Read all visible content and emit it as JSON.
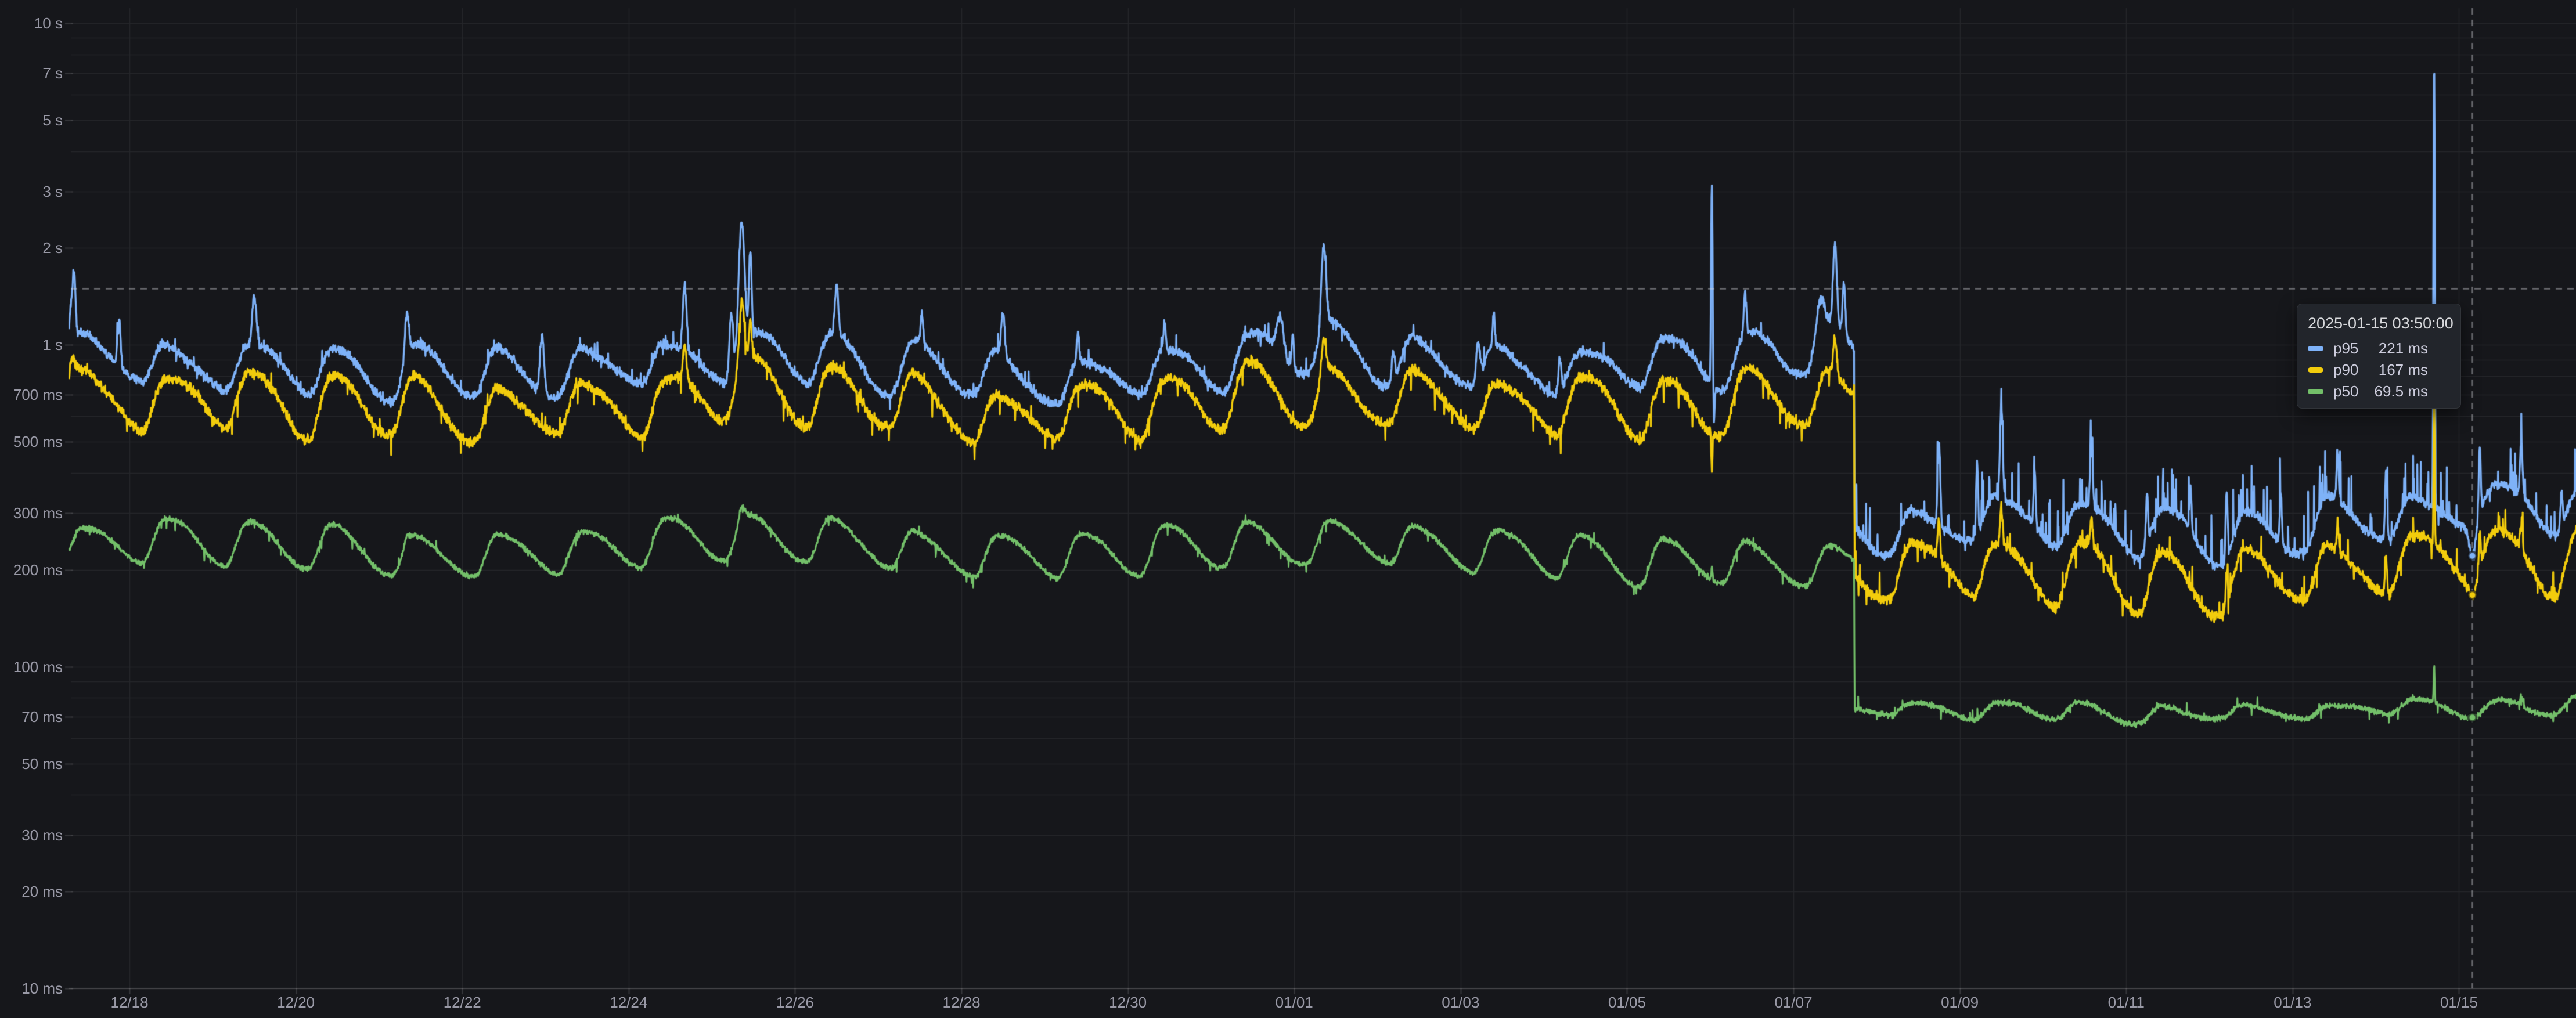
{
  "page": {
    "background": "#16171B",
    "kind": "time-series latency percentile panel"
  },
  "tooltip": {
    "title": "2025-01-15 03:50:00",
    "rows": [
      {
        "series": "p95",
        "value": "221 ms",
        "value_ms": 221,
        "color": "#7EB2F8"
      },
      {
        "series": "p90",
        "value": "167 ms",
        "value_ms": 167,
        "color": "#F2CC0C"
      },
      {
        "series": "p50",
        "value": "69.5 ms",
        "value_ms": 69.5,
        "color": "#73BF69"
      }
    ]
  },
  "crosshair": {
    "time": "2025-01-15 03:50:00",
    "time_h": 692.25,
    "y_value_ms": 1500
  },
  "chart_data": {
    "type": "line",
    "x_type": "time",
    "y_scale": "log10",
    "y_unit": "milliseconds",
    "ylim_ms": [
      10,
      10000
    ],
    "x_range": [
      "2024-12-17 07:35",
      "2025-01-16 09:45"
    ],
    "grid": true,
    "legend_position": "none",
    "y_ticks": [
      {
        "label": "10 s",
        "ms": 10000
      },
      {
        "label": "7 s",
        "ms": 7000
      },
      {
        "label": "5 s",
        "ms": 5000
      },
      {
        "label": "3 s",
        "ms": 3000
      },
      {
        "label": "2 s",
        "ms": 2000
      },
      {
        "label": "1 s",
        "ms": 1000
      },
      {
        "label": "700 ms",
        "ms": 700
      },
      {
        "label": "500 ms",
        "ms": 500
      },
      {
        "label": "300 ms",
        "ms": 300
      },
      {
        "label": "200 ms",
        "ms": 200
      },
      {
        "label": "100 ms",
        "ms": 100
      },
      {
        "label": "70 ms",
        "ms": 70
      },
      {
        "label": "50 ms",
        "ms": 50
      },
      {
        "label": "30 ms",
        "ms": 30
      },
      {
        "label": "20 ms",
        "ms": 20
      },
      {
        "label": "10 ms",
        "ms": 10
      }
    ],
    "y_grid_ms": [
      10000,
      9000,
      8000,
      7000,
      6000,
      5000,
      4000,
      3000,
      2000,
      1000,
      900,
      800,
      700,
      600,
      500,
      400,
      300,
      200,
      100,
      90,
      80,
      70,
      60,
      50,
      40,
      30,
      20,
      10
    ],
    "x_ticks": [
      {
        "label": "12/18",
        "t_h": 16.42
      },
      {
        "label": "12/20",
        "t_h": 64.42
      },
      {
        "label": "12/22",
        "t_h": 112.42
      },
      {
        "label": "12/24",
        "t_h": 160.42
      },
      {
        "label": "12/26",
        "t_h": 208.42
      },
      {
        "label": "12/28",
        "t_h": 256.42
      },
      {
        "label": "12/30",
        "t_h": 304.42
      },
      {
        "label": "01/01",
        "t_h": 352.42
      },
      {
        "label": "01/03",
        "t_h": 400.42
      },
      {
        "label": "01/05",
        "t_h": 448.42
      },
      {
        "label": "01/07",
        "t_h": 496.42
      },
      {
        "label": "01/09",
        "t_h": 544.42
      },
      {
        "label": "01/11",
        "t_h": 592.42
      },
      {
        "label": "01/13",
        "t_h": 640.42
      },
      {
        "label": "01/15",
        "t_h": 688.42
      }
    ],
    "daily_pattern": {
      "peak_hour": 10.2,
      "trough_hour": 3.6,
      "start_hour_of_day": 7.58
    },
    "weekly": {
      "amplitude": 0.045,
      "peak_day": 1.2,
      "period_days": 7
    },
    "level_shift": {
      "t_h": 513.92,
      "time": "2025-01-07 ~17:30"
    },
    "series": [
      {
        "name": "p95",
        "color": "#7EB2F8",
        "line_width": 3.2,
        "envelope_ms": [
          [
            -1,
            870
          ],
          [
            16,
            860
          ],
          [
            60,
            855
          ],
          [
            100,
            845
          ],
          [
            150,
            855
          ],
          [
            190,
            920
          ],
          [
            215,
            865
          ],
          [
            260,
            845
          ],
          [
            310,
            835
          ],
          [
            358,
            920
          ],
          [
            405,
            865
          ],
          [
            455,
            900
          ],
          [
            500,
            965
          ],
          [
            513.9,
            930
          ],
          [
            514.05,
            266
          ],
          [
            530,
            261
          ],
          [
            556,
            279
          ],
          [
            580,
            284
          ],
          [
            602,
            263
          ],
          [
            628,
            275
          ],
          [
            652,
            286
          ],
          [
            680,
            292
          ],
          [
            700,
            296
          ],
          [
            723,
            300
          ]
        ],
        "daily_amp_pre": 0.17,
        "daily_amp_post": 0.17,
        "spikes": [
          [
            -0.3,
            1.0,
            0.42
          ],
          [
            0.5,
            0.5,
            0.35
          ],
          [
            13.4,
            0.6,
            0.42
          ],
          [
            52.4,
            0.8,
            0.42
          ],
          [
            96.4,
            0.8,
            0.38
          ],
          [
            135.4,
            0.8,
            0.5
          ],
          [
            176.6,
            0.7,
            0.6
          ],
          [
            190.0,
            0.7,
            0.5
          ],
          [
            193.0,
            1.0,
            1.35
          ],
          [
            195.5,
            0.5,
            0.8
          ],
          [
            220.4,
            0.7,
            0.42
          ],
          [
            245,
            0.5,
            0.25
          ],
          [
            268.4,
            0.7,
            0.36
          ],
          [
            290,
            0.5,
            0.22
          ],
          [
            315,
            0.5,
            0.22
          ],
          [
            348.4,
            1.3,
            0.3
          ],
          [
            352,
            0.4,
            0.3
          ],
          [
            360.9,
            0.9,
            0.82
          ],
          [
            381,
            0.6,
            0.25
          ],
          [
            405.4,
            0.7,
            0.32
          ],
          [
            410,
            0.4,
            0.25
          ],
          [
            429,
            0.6,
            0.28
          ],
          [
            472.9,
            0.26,
            3.2
          ],
          [
            473.5,
            0.3,
            -0.22
          ],
          [
            482.5,
            0.5,
            0.35
          ],
          [
            504.0,
            1.6,
            0.28
          ],
          [
            508.4,
            0.7,
            0.8
          ],
          [
            511.0,
            0.5,
            0.45
          ],
          [
            538.4,
            0.5,
            0.85
          ],
          [
            549.4,
            0.4,
            0.65
          ],
          [
            556.4,
            0.5,
            0.95
          ],
          [
            566.0,
            0.4,
            0.5
          ],
          [
            582.4,
            0.5,
            0.5
          ],
          [
            598.4,
            0.4,
            0.42
          ],
          [
            611.0,
            0.4,
            0.35
          ],
          [
            621.4,
            0.4,
            0.6
          ],
          [
            637.0,
            0.4,
            0.45
          ],
          [
            653.4,
            0.4,
            0.42
          ],
          [
            667.4,
            0.4,
            0.65
          ],
          [
            681.25,
            0.2,
            22
          ],
          [
            694.4,
            0.4,
            0.65
          ],
          [
            706.4,
            0.5,
            0.45
          ],
          [
            718.0,
            0.4,
            0.3
          ]
        ],
        "noise": {
          "base": 0.03,
          "up_prob_pre": 0.02,
          "up_prob_post": 0.06,
          "up_amp_pre": 0.13,
          "up_amp_post": 0.45,
          "down_prob": 0.008,
          "down_amp": 0.08
        }
      },
      {
        "name": "p90",
        "color": "#F2CC0C",
        "line_width": 3.2,
        "envelope_ms": [
          [
            -1,
            700
          ],
          [
            16,
            670
          ],
          [
            96,
            652
          ],
          [
            168,
            662
          ],
          [
            193,
            700
          ],
          [
            264,
            648
          ],
          [
            358,
            680
          ],
          [
            455,
            668
          ],
          [
            500,
            700
          ],
          [
            513.9,
            688
          ],
          [
            514.05,
            191
          ],
          [
            556,
            197
          ],
          [
            602,
            194
          ],
          [
            652,
            203
          ],
          [
            700,
            210
          ],
          [
            723,
            214
          ]
        ],
        "daily_amp_pre": 0.2,
        "daily_amp_post": 0.21,
        "spikes": [
          [
            -0.3,
            1.0,
            0.2
          ],
          [
            176.6,
            0.7,
            0.28
          ],
          [
            193.0,
            1.0,
            0.55
          ],
          [
            195.5,
            0.5,
            0.3
          ],
          [
            360.9,
            0.9,
            0.3
          ],
          [
            472.9,
            0.22,
            -0.22
          ],
          [
            508.4,
            0.7,
            0.3
          ],
          [
            538.4,
            0.5,
            0.3
          ],
          [
            556.4,
            0.5,
            0.32
          ],
          [
            582.4,
            0.5,
            0.2
          ],
          [
            621.4,
            0.4,
            0.28
          ],
          [
            653.4,
            0.4,
            0.2
          ],
          [
            667.4,
            0.4,
            0.28
          ],
          [
            681.25,
            0.2,
            1.8
          ],
          [
            694.4,
            0.4,
            0.3
          ],
          [
            706.4,
            0.5,
            0.2
          ]
        ],
        "noise": {
          "base": 0.034,
          "up_prob_pre": 0.012,
          "up_prob_post": 0.03,
          "up_amp_pre": 0.1,
          "up_amp_post": 0.22,
          "down_prob": 0.012,
          "down_amp": 0.14
        }
      },
      {
        "name": "p50",
        "color": "#73BF69",
        "line_width": 3.0,
        "envelope_ms": [
          [
            -1,
            235
          ],
          [
            16,
            240
          ],
          [
            96,
            232
          ],
          [
            168,
            239
          ],
          [
            193,
            244
          ],
          [
            264,
            232
          ],
          [
            358,
            238
          ],
          [
            432,
            228
          ],
          [
            470,
            221
          ],
          [
            500,
            208
          ],
          [
            513.9,
            199
          ],
          [
            514.05,
            72
          ],
          [
            580,
            72.5
          ],
          [
            652,
            73
          ],
          [
            700,
            74
          ],
          [
            723,
            75
          ]
        ],
        "daily_amp_pre": 0.155,
        "daily_amp_post": 0.055,
        "spikes": [
          [
            96.4,
            0.8,
            0.06
          ],
          [
            193.0,
            1.0,
            0.1
          ],
          [
            472.9,
            0.3,
            0.1
          ],
          [
            681.25,
            0.22,
            0.3
          ],
          [
            706.4,
            0.5,
            0.07
          ]
        ],
        "noise": {
          "base": 0.018,
          "up_prob_pre": 0.006,
          "up_prob_post": 0.012,
          "up_amp_pre": 0.07,
          "up_amp_post": 0.09,
          "down_prob": 0.01,
          "down_amp": 0.07
        }
      }
    ]
  }
}
